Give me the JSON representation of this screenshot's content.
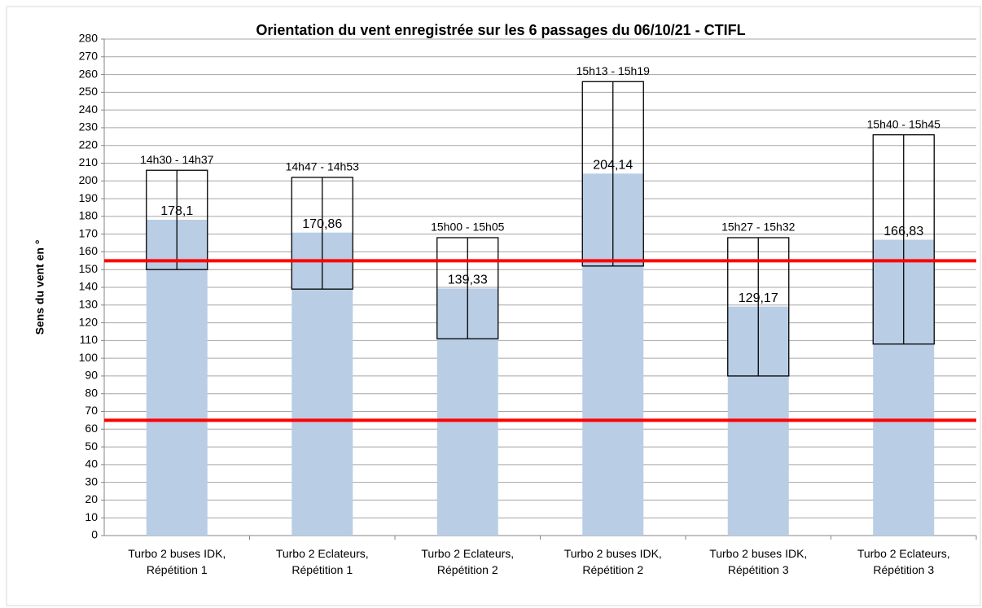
{
  "chart_data": {
    "type": "bar",
    "title": "Orientation du vent enregistrée sur les 6 passages du 06/10/21 - CTIFL",
    "y_label": "Sens du vent en °",
    "categories": [
      "Turbo 2 buses IDK, Répétition 1",
      "Turbo 2 Eclateurs, Répétition 1",
      "Turbo 2 Eclateurs, Répétition 2",
      "Turbo 2 buses IDK, Répétition 2",
      "Turbo 2 buses IDK, Répétition 3",
      "Turbo 2 Eclateurs, Répétition 3"
    ],
    "values": [
      178.1,
      170.86,
      139.33,
      204.14,
      129.17,
      166.83
    ],
    "value_labels": [
      "178,1",
      "170,86",
      "139,33",
      "204,14",
      "129,17",
      "166,83"
    ],
    "color": "#b9cde5",
    "range_low": [
      150,
      139,
      111,
      152,
      90,
      108
    ],
    "range_high": [
      206,
      202,
      168,
      256,
      168,
      226
    ],
    "range_labels": [
      "14h30 - 14h37",
      "14h47 - 14h53",
      "15h00 - 15h05",
      "15h13 - 15h19",
      "15h27 - 15h32",
      "15h40 - 15h45"
    ],
    "ref_lines": [
      155,
      65
    ],
    "ref_color": "#ff0000",
    "ylim": [
      0,
      280
    ],
    "yticks": [
      0,
      10,
      20,
      30,
      40,
      50,
      60,
      70,
      80,
      90,
      100,
      110,
      120,
      130,
      140,
      150,
      160,
      170,
      180,
      190,
      200,
      210,
      220,
      230,
      240,
      250,
      260,
      270,
      280
    ],
    "grid": true
  }
}
